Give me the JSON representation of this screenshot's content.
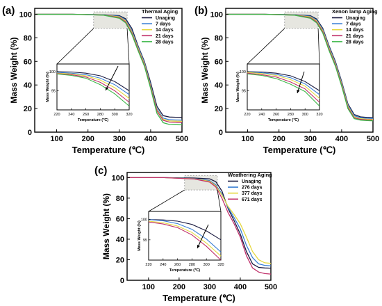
{
  "chart_data": [
    {
      "type": "line",
      "panel_label": "(a)",
      "xlabel": "Temperature (℃)",
      "ylabel": "Mass Weight (%)",
      "xlim": [
        30,
        500
      ],
      "ylim": [
        0,
        105
      ],
      "xticks": [
        100,
        200,
        300,
        400,
        500
      ],
      "yticks": [
        0,
        20,
        40,
        60,
        80,
        100
      ],
      "legend_title": "Thermal Aging",
      "legend_position": "top-right",
      "series": [
        {
          "name": "Unaging",
          "color": "#1a1a40",
          "x": [
            30,
            150,
            250,
            300,
            320,
            340,
            360,
            380,
            400,
            420,
            440,
            460,
            480,
            500
          ],
          "y": [
            100,
            100,
            99.6,
            98.8,
            96.2,
            88,
            73,
            60,
            42,
            22,
            14,
            12.8,
            12.6,
            12.5
          ]
        },
        {
          "name": "7 days",
          "color": "#3a7fd5",
          "x": [
            30,
            150,
            250,
            300,
            320,
            340,
            360,
            380,
            400,
            420,
            440,
            460,
            480,
            500
          ],
          "y": [
            100,
            100,
            99.5,
            98.3,
            95.2,
            86,
            72,
            59,
            40,
            20,
            12,
            10.5,
            10.3,
            10.2
          ]
        },
        {
          "name": "14 days",
          "color": "#e6d840",
          "x": [
            30,
            150,
            250,
            300,
            320,
            340,
            360,
            380,
            400,
            420,
            440,
            460,
            480,
            500
          ],
          "y": [
            100,
            100,
            99.4,
            97.8,
            94.4,
            85,
            71,
            58,
            39,
            19,
            11,
            9.5,
            9.3,
            9.2
          ]
        },
        {
          "name": "21 days",
          "color": "#c0306a",
          "x": [
            30,
            150,
            250,
            300,
            320,
            340,
            360,
            380,
            400,
            420,
            440,
            460,
            480,
            500
          ],
          "y": [
            100,
            100,
            99.3,
            97.2,
            93.6,
            84,
            70,
            57,
            38,
            18,
            10,
            8.5,
            8.3,
            8.2
          ]
        },
        {
          "name": "28 days",
          "color": "#3db84a",
          "x": [
            30,
            150,
            250,
            300,
            320,
            340,
            360,
            380,
            400,
            420,
            440,
            460,
            480,
            500
          ],
          "y": [
            100,
            100,
            99.2,
            96.6,
            92.8,
            83,
            69,
            56,
            37,
            16,
            8,
            6.5,
            6.3,
            6.2
          ]
        }
      ],
      "inset": {
        "xlim": [
          220,
          320
        ],
        "ylim": [
          90,
          102
        ],
        "xticks": [
          220,
          240,
          260,
          280,
          300,
          320
        ],
        "yticks": [
          100,
          95
        ],
        "xlabel": "Temperature (℃)",
        "ylabel": "Mass Weight (%)",
        "series": [
          {
            "name": "Unaging",
            "x": [
              220,
              240,
              260,
              280,
              300,
              320
            ],
            "y": [
              100,
              99.9,
              99.6,
              98.9,
              97.4,
              95
            ]
          },
          {
            "name": "7 days",
            "x": [
              220,
              240,
              260,
              280,
              300,
              320
            ],
            "y": [
              99.8,
              99.6,
              99.2,
              98.3,
              96.6,
              94
            ]
          },
          {
            "name": "14 days",
            "x": [
              220,
              240,
              260,
              280,
              300,
              320
            ],
            "y": [
              99.6,
              99.4,
              98.9,
              97.8,
              95.8,
              93
            ]
          },
          {
            "name": "21 days",
            "x": [
              220,
              240,
              260,
              280,
              300,
              320
            ],
            "y": [
              99.5,
              99.2,
              98.6,
              97.2,
              95,
              92
            ]
          },
          {
            "name": "28 days",
            "x": [
              220,
              240,
              260,
              280,
              300,
              320
            ],
            "y": [
              99.4,
              99,
              98.3,
              96.6,
              94.2,
              91
            ]
          }
        ]
      }
    },
    {
      "type": "line",
      "panel_label": "(b)",
      "xlabel": "Temperature (℃)",
      "ylabel": "Mass Weight (%)",
      "xlim": [
        30,
        500
      ],
      "ylim": [
        0,
        105
      ],
      "xticks": [
        100,
        200,
        300,
        400,
        500
      ],
      "yticks": [
        0,
        20,
        40,
        60,
        80,
        100
      ],
      "legend_title": "Xenon lamp Aging",
      "legend_position": "top-right",
      "series": [
        {
          "name": "Unaging",
          "color": "#1a1a40",
          "x": [
            30,
            150,
            250,
            300,
            320,
            340,
            360,
            380,
            400,
            420,
            440,
            460,
            480,
            500
          ],
          "y": [
            100,
            100,
            99.6,
            98.8,
            96,
            88,
            73,
            60,
            43,
            24,
            15,
            13,
            12.5,
            12.3
          ]
        },
        {
          "name": "7 days",
          "color": "#3a7fd5",
          "x": [
            30,
            150,
            250,
            300,
            320,
            340,
            360,
            380,
            400,
            420,
            440,
            460,
            480,
            500
          ],
          "y": [
            100,
            100,
            99.5,
            98.3,
            95.2,
            87,
            72,
            59,
            42,
            23,
            14,
            12.2,
            11.8,
            11.6
          ]
        },
        {
          "name": "14 days",
          "color": "#e6d840",
          "x": [
            30,
            150,
            250,
            300,
            320,
            340,
            360,
            380,
            400,
            420,
            440,
            460,
            480,
            500
          ],
          "y": [
            100,
            100,
            99.4,
            97.8,
            94.4,
            86,
            71,
            58,
            41,
            22,
            13,
            11.4,
            11,
            10.8
          ]
        },
        {
          "name": "21 days",
          "color": "#c0306a",
          "x": [
            30,
            150,
            250,
            300,
            320,
            340,
            360,
            380,
            400,
            420,
            440,
            460,
            480,
            500
          ],
          "y": [
            100,
            100,
            99.3,
            97.2,
            93.6,
            85,
            70,
            57,
            40,
            21,
            12.2,
            10.8,
            10.4,
            10.2
          ]
        },
        {
          "name": "28 days",
          "color": "#3db84a",
          "x": [
            30,
            150,
            250,
            300,
            320,
            340,
            360,
            380,
            400,
            420,
            440,
            460,
            480,
            500
          ],
          "y": [
            100,
            100,
            99.2,
            96.6,
            92.8,
            84,
            69,
            56,
            39,
            20,
            11.5,
            10.2,
            9.8,
            9.6
          ]
        }
      ],
      "inset": {
        "xlim": [
          220,
          320
        ],
        "ylim": [
          90,
          102
        ],
        "xticks": [
          220,
          240,
          260,
          280,
          300,
          320
        ],
        "yticks": [
          100,
          95
        ],
        "xlabel": "Temperature (℃)",
        "ylabel": "Mass Weight (%)",
        "series": [
          {
            "name": "Unaging",
            "x": [
              220,
              240,
              260,
              280,
              300,
              320
            ],
            "y": [
              100,
              99.9,
              99.6,
              98.9,
              97.4,
              95
            ]
          },
          {
            "name": "7 days",
            "x": [
              220,
              240,
              260,
              280,
              300,
              320
            ],
            "y": [
              99.9,
              99.7,
              99.3,
              98.4,
              96.8,
              94
            ]
          },
          {
            "name": "14 days",
            "x": [
              220,
              240,
              260,
              280,
              300,
              320
            ],
            "y": [
              99.8,
              99.5,
              99,
              97.9,
              96.2,
              93
            ]
          },
          {
            "name": "21 days",
            "x": [
              220,
              240,
              260,
              280,
              300,
              320
            ],
            "y": [
              99.6,
              99.2,
              98.6,
              97.3,
              95.5,
              92
            ]
          },
          {
            "name": "28 days",
            "x": [
              220,
              240,
              260,
              280,
              300,
              320
            ],
            "y": [
              99.4,
              99,
              98.2,
              96.7,
              94.8,
              91
            ]
          }
        ]
      }
    },
    {
      "type": "line",
      "panel_label": "(c)",
      "xlabel": "Temperature (℃)",
      "ylabel": "Mass Weight (%)",
      "xlim": [
        30,
        500
      ],
      "ylim": [
        0,
        105
      ],
      "xticks": [
        100,
        200,
        300,
        400,
        500
      ],
      "yticks": [
        0,
        20,
        40,
        60,
        80,
        100
      ],
      "legend_title": "Weathering Aging",
      "legend_position": "top-right",
      "series": [
        {
          "name": "Unaging",
          "color": "#1a1a40",
          "x": [
            30,
            150,
            250,
            300,
            320,
            340,
            360,
            380,
            400,
            420,
            440,
            460,
            480,
            500
          ],
          "y": [
            100,
            100,
            99.6,
            98.8,
            96,
            87,
            70,
            58,
            45,
            28,
            16,
            12.5,
            12,
            11.8
          ]
        },
        {
          "name": "276 days",
          "color": "#3a7fd5",
          "x": [
            30,
            150,
            250,
            300,
            320,
            340,
            360,
            380,
            400,
            420,
            440,
            460,
            480,
            500
          ],
          "y": [
            100,
            100,
            99,
            97,
            93,
            84,
            71,
            61,
            50,
            34,
            22,
            16,
            14.5,
            14
          ]
        },
        {
          "name": "377 days",
          "color": "#e6d840",
          "x": [
            30,
            150,
            250,
            300,
            320,
            340,
            360,
            380,
            400,
            420,
            440,
            460,
            480,
            500
          ],
          "y": [
            100,
            100,
            98.8,
            96.3,
            92,
            83,
            72,
            64,
            55,
            42,
            28,
            20,
            17,
            16.5
          ]
        },
        {
          "name": "671 days",
          "color": "#c0306a",
          "x": [
            30,
            150,
            250,
            300,
            320,
            340,
            360,
            380,
            400,
            420,
            440,
            460,
            480,
            500
          ],
          "y": [
            100,
            100,
            98.6,
            95.6,
            91,
            80,
            66,
            55,
            42,
            24,
            12,
            8,
            6.5,
            6
          ]
        }
      ],
      "inset": {
        "xlim": [
          220,
          320
        ],
        "ylim": [
          90,
          102
        ],
        "xticks": [
          220,
          240,
          260,
          280,
          300,
          320
        ],
        "yticks": [
          100,
          95
        ],
        "xlabel": "Temperature (℃)",
        "ylabel": "Mass Weight (%)",
        "series": [
          {
            "name": "Unaging",
            "x": [
              220,
              240,
              260,
              280,
              300,
              320
            ],
            "y": [
              100,
              99.9,
              99.6,
              98.8,
              97.2,
              95
            ]
          },
          {
            "name": "276 days",
            "x": [
              220,
              240,
              260,
              280,
              300,
              320
            ],
            "y": [
              100,
              99.7,
              99,
              97.6,
              95.2,
              92
            ]
          },
          {
            "name": "377 days",
            "x": [
              220,
              240,
              260,
              280,
              300,
              320
            ],
            "y": [
              99.6,
              99.2,
              98.4,
              96.8,
              94.2,
              91
            ]
          },
          {
            "name": "671 days",
            "x": [
              220,
              240,
              260,
              280,
              300,
              320
            ],
            "y": [
              99.4,
              98.9,
              98,
              96.2,
              93.4,
              90
            ]
          }
        ]
      }
    }
  ]
}
